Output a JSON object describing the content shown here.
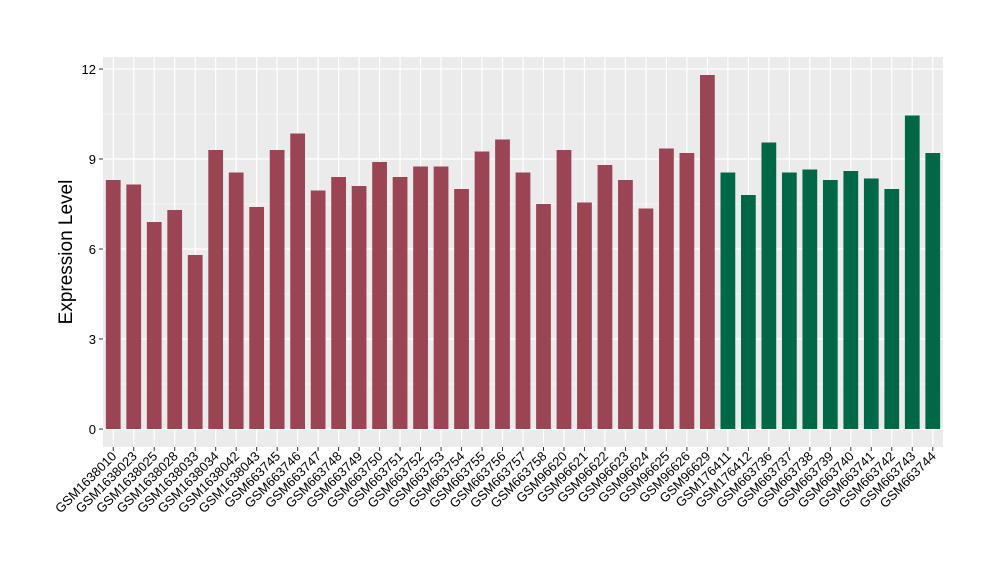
{
  "chart_data": {
    "type": "bar",
    "ylabel": "Expression Level",
    "xlabel": "",
    "ylim": [
      -0.6,
      12.4
    ],
    "yticks": [
      0,
      3,
      6,
      9,
      12
    ],
    "grid": true,
    "categories": [
      "GSM1638010",
      "GSM1638023",
      "GSM1638025",
      "GSM1638028",
      "GSM1638033",
      "GSM1638034",
      "GSM1638042",
      "GSM1638043",
      "GSM663745",
      "GSM663746",
      "GSM663747",
      "GSM663748",
      "GSM663749",
      "GSM663750",
      "GSM663751",
      "GSM663752",
      "GSM663753",
      "GSM663754",
      "GSM663755",
      "GSM663756",
      "GSM663757",
      "GSM663758",
      "GSM96620",
      "GSM96621",
      "GSM96622",
      "GSM96623",
      "GSM96624",
      "GSM96625",
      "GSM96626",
      "GSM96629",
      "GSM176411",
      "GSM176412",
      "GSM663736",
      "GSM663737",
      "GSM663738",
      "GSM663739",
      "GSM663740",
      "GSM663741",
      "GSM663742",
      "GSM663743",
      "GSM663744"
    ],
    "values": [
      8.3,
      8.15,
      6.9,
      7.3,
      5.8,
      9.3,
      8.55,
      7.4,
      9.3,
      9.85,
      7.95,
      8.4,
      8.1,
      8.9,
      8.4,
      8.75,
      8.75,
      8.0,
      9.25,
      9.65,
      8.55,
      7.5,
      9.3,
      7.55,
      8.8,
      8.3,
      7.35,
      9.35,
      9.2,
      11.8,
      8.55,
      7.8,
      9.55,
      8.55,
      8.65,
      8.3,
      8.6,
      8.35,
      8.0,
      10.45,
      9.2
    ],
    "group_colors": [
      "#9B4453",
      "#9B4453",
      "#9B4453",
      "#9B4453",
      "#9B4453",
      "#9B4453",
      "#9B4453",
      "#9B4453",
      "#9B4453",
      "#9B4453",
      "#9B4453",
      "#9B4453",
      "#9B4453",
      "#9B4453",
      "#9B4453",
      "#9B4453",
      "#9B4453",
      "#9B4453",
      "#9B4453",
      "#9B4453",
      "#9B4453",
      "#9B4453",
      "#9B4453",
      "#9B4453",
      "#9B4453",
      "#9B4453",
      "#9B4453",
      "#9B4453",
      "#9B4453",
      "#9B4453",
      "#006847",
      "#006847",
      "#006847",
      "#006847",
      "#006847",
      "#006847",
      "#006847",
      "#006847",
      "#006847",
      "#006847",
      "#006847"
    ],
    "colors": {
      "panel_background": "#EBEBEB",
      "grid": "#FFFFFF"
    }
  }
}
